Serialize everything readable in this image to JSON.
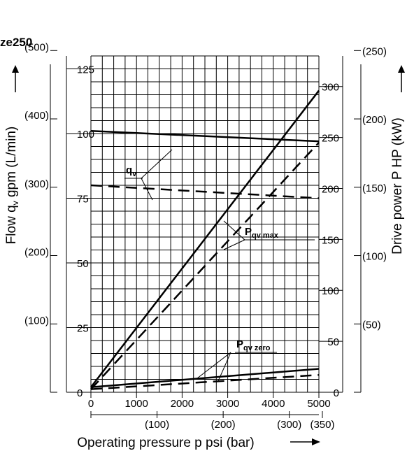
{
  "chart_data": {
    "type": "line",
    "title": "ze250",
    "xlabel": "Operating pressure p psi (bar)",
    "ylabel_left": "Flow qv gpm (L/min)",
    "ylabel_right": "Drive power P HP (kW)",
    "xlim": [
      0,
      5000
    ],
    "ylim_left": [
      0,
      130
    ],
    "ylim_right": [
      0,
      330
    ],
    "x_ticks": [
      "0",
      "1000",
      "2000",
      "3000",
      "4000",
      "5000"
    ],
    "x_ticks_secondary": [
      "(100)",
      "(200)",
      "(300)",
      "(350)"
    ],
    "y_ticks_left_gpm": [
      "0",
      "25",
      "50",
      "75",
      "100",
      "125"
    ],
    "y_ticks_left_lmin": [
      "(100)",
      "(200)",
      "(300)",
      "(400)",
      "(500)"
    ],
    "y_ticks_right_hp": [
      "0",
      "50",
      "100",
      "150",
      "200",
      "250",
      "300"
    ],
    "y_ticks_right_kw": [
      "(50)",
      "(100)",
      "(150)",
      "(200)",
      "(250)"
    ],
    "grid": true,
    "series": [
      {
        "name": "qv",
        "axis": "left",
        "style": "solid",
        "x": [
          0,
          5000
        ],
        "y": [
          101,
          97
        ]
      },
      {
        "name": "qv",
        "axis": "left",
        "style": "dashed",
        "x": [
          0,
          5000
        ],
        "y": [
          80,
          75
        ]
      },
      {
        "name": "Pqv max",
        "axis": "right",
        "style": "solid",
        "x": [
          0,
          5000
        ],
        "y": [
          5,
          296
        ]
      },
      {
        "name": "Pqv max",
        "axis": "right",
        "style": "dashed",
        "x": [
          0,
          5000
        ],
        "y": [
          3,
          245
        ]
      },
      {
        "name": "Pqv zero",
        "axis": "right",
        "style": "solid",
        "x": [
          0,
          5000
        ],
        "y": [
          5,
          23
        ]
      },
      {
        "name": "Pqv zero",
        "axis": "right",
        "style": "dashed",
        "x": [
          0,
          5000
        ],
        "y": [
          3,
          17
        ]
      }
    ],
    "callouts": {
      "qv": {
        "main": "q",
        "sub": "v"
      },
      "pmax": {
        "main": "P",
        "sub": "qv max"
      },
      "pzero": {
        "main": "P",
        "sub": "qv zero"
      }
    }
  }
}
